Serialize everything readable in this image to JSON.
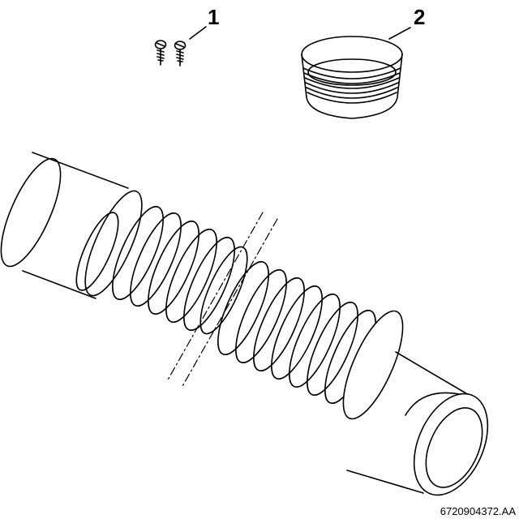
{
  "callouts": {
    "screws": "1",
    "adapter_ring": "2"
  },
  "part_code": "6720904372.AA",
  "colors": {
    "line": "#000000",
    "background": "#ffffff"
  }
}
